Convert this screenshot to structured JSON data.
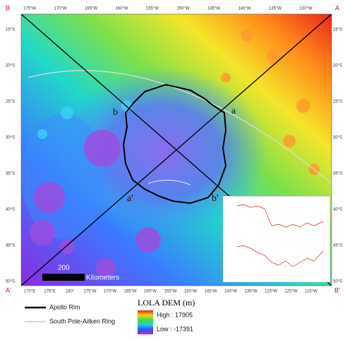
{
  "map": {
    "top_labels": [
      "175°W",
      "170°W",
      "165°W",
      "160°W",
      "155°W",
      "150°W",
      "145°W",
      "140°W",
      "135°W",
      "130°W"
    ],
    "bottom_labels": [
      "170°E",
      "175°E",
      "180°",
      "175°W",
      "170°W",
      "165°W",
      "160°W",
      "155°W",
      "150°W",
      "145°W",
      "140°W",
      "135°W",
      "125°W",
      "120°W",
      "115°W"
    ],
    "left_labels": [
      "15°S",
      "20°S",
      "25°S",
      "30°S",
      "35°S",
      "40°S",
      "45°S",
      "50°S"
    ],
    "right_labels": [
      "15°S",
      "20°S",
      "25°S",
      "30°S",
      "35°S",
      "40°S",
      "45°S",
      "50°S"
    ],
    "corners": {
      "top_left": "B",
      "top_right": "A",
      "bottom_left": "A'",
      "bottom_right": "B'"
    },
    "profile_labels": {
      "a": "a",
      "b": "b",
      "a_prime": "a'",
      "b_prime": "b'"
    },
    "scale": {
      "value": "200",
      "unit": "Kilometers"
    }
  },
  "legend": {
    "apollo": "Apollo Rim",
    "spa": "South Pole-Aitken Ring",
    "title": "LOLA DEM (m)",
    "high": "High : 17905",
    "low": "Low : -17391"
  }
}
